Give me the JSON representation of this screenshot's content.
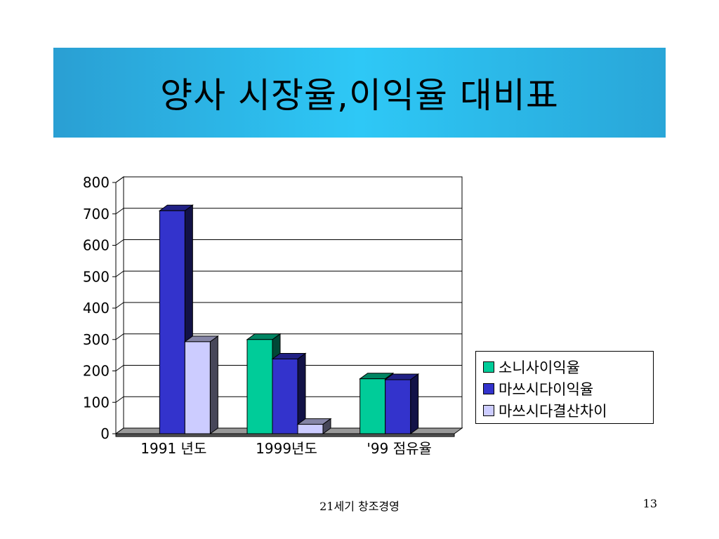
{
  "slide": {
    "title": "양사 시장율,이익율 대비표",
    "footer": "21세기 창조경영",
    "page_number": "13"
  },
  "chart_data": {
    "type": "bar",
    "categories": [
      "1991 년도",
      "1999년도",
      "'99 점유율"
    ],
    "series": [
      {
        "name": "소니사이익율",
        "color": "#00cc99",
        "values": [
          null,
          300,
          175
        ]
      },
      {
        "name": "마쓰시다이익율",
        "color": "#3333cc",
        "values": [
          710,
          238,
          172
        ]
      },
      {
        "name": "마쓰시다결산차이",
        "color": "#ccccff",
        "values": [
          293,
          30,
          null
        ]
      }
    ],
    "ylim": [
      0,
      800
    ],
    "yticks": [
      "0",
      "100",
      "200",
      "300",
      "400",
      "500",
      "600",
      "700",
      "800"
    ],
    "grid": true,
    "legend_position": "right"
  }
}
